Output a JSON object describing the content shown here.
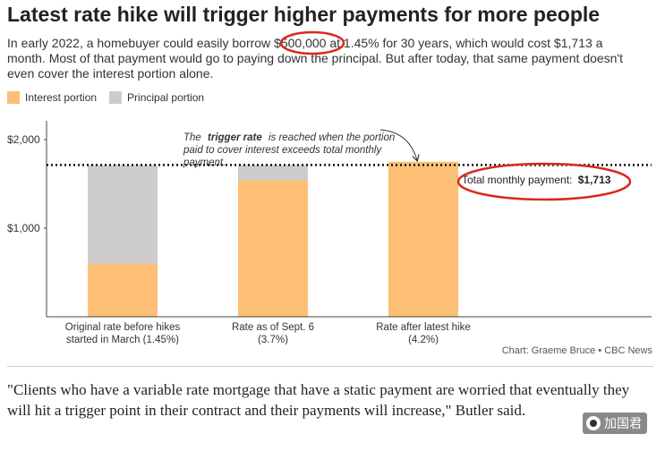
{
  "header": {
    "title": "Latest rate hike will trigger higher payments for more people",
    "subtitle": "In early 2022, a homebuyer could easily borrow $500,000 at 1.45% for 30 years, which would cost $1,713 a month. Most of that payment would go to paying down the principal. But after today, that same payment doesn't even cover the interest portion alone."
  },
  "colors": {
    "interest": "#fdbf75",
    "principal": "#cccccc",
    "highlight_circle": "#d9291c",
    "axis": "#444444"
  },
  "chart_data": {
    "type": "bar",
    "stacked": true,
    "categories": [
      "Original rate before hikes started in March (1.45%)",
      "Rate as of Sept. 6 (3.7%)",
      "Rate after latest hike (4.2%)"
    ],
    "category_lines": [
      [
        "Original rate before hikes",
        "started in March (1.45%)"
      ],
      [
        "Rate as of Sept. 6",
        "(3.7%)"
      ],
      [
        "Rate after latest hike",
        "(4.2%)"
      ]
    ],
    "series": [
      {
        "name": "Interest portion",
        "color": "#fdbf75",
        "values": [
          600,
          1540,
          1750
        ]
      },
      {
        "name": "Principal portion",
        "color": "#cccccc",
        "values": [
          1113,
          173,
          0
        ]
      }
    ],
    "yticks": [
      {
        "value": 1000,
        "label": "$1,000"
      },
      {
        "value": 2000,
        "label": "$2,000"
      }
    ],
    "ylim": [
      0,
      2000
    ],
    "reference_line": {
      "value": 1713,
      "style": "dotted"
    },
    "annotations": {
      "trigger_prefix": "The",
      "trigger_bold": "trigger rate",
      "trigger_rest_1": "is reached when the portion",
      "trigger_line_2": "paid to cover interest exceeds total monthly",
      "trigger_line_3": "payment.",
      "total_label": "Total monthly payment:",
      "total_value": "$1,713"
    },
    "legend_position": "top-left",
    "grid": false
  },
  "source": "Chart: Graeme Bruce • CBC News",
  "quote": "\"Clients who have a variable rate mortgage that have a static payment are worried that eventually they will hit a trigger point in their contract and their payments will increase,\" Butler said.",
  "watermark": "加国君"
}
